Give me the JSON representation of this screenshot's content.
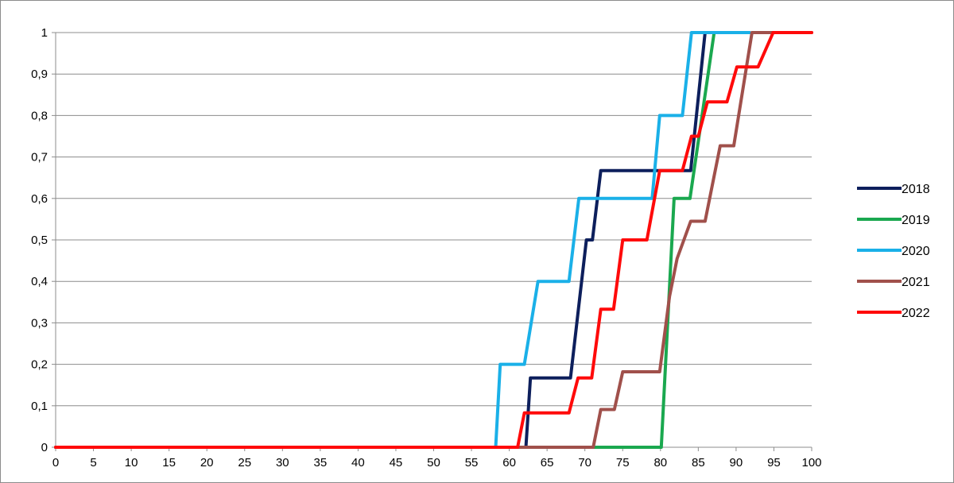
{
  "chart_data": {
    "type": "line",
    "title": "",
    "xlabel": "",
    "ylabel": "",
    "xlim": [
      0,
      100
    ],
    "ylim": [
      0,
      1
    ],
    "x_ticks": [
      0,
      5,
      10,
      15,
      20,
      25,
      30,
      35,
      40,
      45,
      50,
      55,
      60,
      65,
      70,
      75,
      80,
      85,
      90,
      95,
      100
    ],
    "y_ticks": [
      0,
      0.1,
      0.2,
      0.3,
      0.4,
      0.5,
      0.6,
      0.7,
      0.8,
      0.9,
      1
    ],
    "x_tick_labels": [
      "0",
      "5",
      "10",
      "15",
      "20",
      "25",
      "30",
      "35",
      "40",
      "45",
      "50",
      "55",
      "60",
      "65",
      "70",
      "75",
      "80",
      "85",
      "90",
      "95",
      "100"
    ],
    "y_tick_labels": [
      "0",
      "0,1",
      "0,2",
      "0,3",
      "0,4",
      "0,5",
      "0,6",
      "0,7",
      "0,8",
      "0,9",
      "1"
    ],
    "grid": "horizontal",
    "legend_position": "right",
    "series": [
      {
        "name": "2018",
        "color": "#0d1f5c",
        "x": [
          0,
          62.2,
          62.8,
          68.1,
          70.2,
          71.0,
          72.1,
          84.0,
          85.9
        ],
        "y": [
          0,
          0,
          0.167,
          0.167,
          0.5,
          0.5,
          0.667,
          0.667,
          1
        ]
      },
      {
        "name": "2019",
        "color": "#1aa84f",
        "x": [
          0,
          80.1,
          81.8,
          83.9,
          87.1
        ],
        "y": [
          0,
          0,
          0.6,
          0.6,
          1
        ]
      },
      {
        "name": "2020",
        "color": "#1ab0e8",
        "x": [
          0,
          58.2,
          58.8,
          62.0,
          63.8,
          67.9,
          69.2,
          78.9,
          79.9,
          82.9,
          84.1,
          91.8
        ],
        "y": [
          0,
          0,
          0.2,
          0.2,
          0.4,
          0.4,
          0.6,
          0.6,
          0.8,
          0.8,
          1,
          1
        ]
      },
      {
        "name": "2021",
        "color": "#a0504b",
        "x": [
          0,
          71.1,
          72.1,
          73.9,
          75.0,
          79.9,
          81.2,
          82.2,
          84.0,
          85.9,
          87.9,
          89.7,
          92.1,
          100
        ],
        "y": [
          0,
          0,
          0.091,
          0.091,
          0.182,
          0.182,
          0.364,
          0.455,
          0.545,
          0.545,
          0.727,
          0.727,
          1,
          1
        ]
      },
      {
        "name": "2022",
        "color": "#ff0a0a",
        "x": [
          0,
          61.1,
          62.0,
          67.9,
          69.1,
          70.9,
          72.1,
          73.8,
          75.0,
          77.1,
          78.2,
          79.9,
          81.2,
          82.9,
          84.1,
          85.0,
          86.2,
          88.8,
          90.1,
          91.8,
          92.9,
          94.9,
          100
        ],
        "y": [
          0,
          0,
          0.083,
          0.083,
          0.167,
          0.167,
          0.333,
          0.333,
          0.5,
          0.5,
          0.5,
          0.667,
          0.667,
          0.667,
          0.75,
          0.75,
          0.833,
          0.833,
          0.917,
          0.917,
          0.917,
          1,
          1
        ]
      }
    ]
  }
}
